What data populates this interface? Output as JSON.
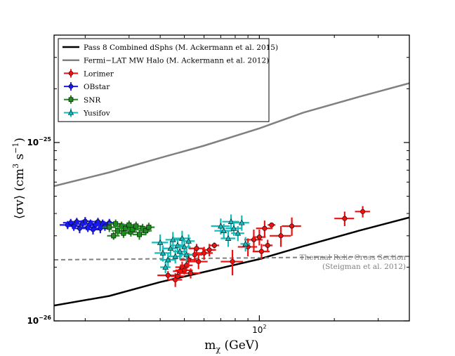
{
  "chart_data": {
    "type": "scatter",
    "title": "",
    "xlabel": "m",
    "xlabel_sub": "χ",
    "xlabel_unit": " (GeV)",
    "ylabel_main": "⟨σv⟩ (cm",
    "ylabel_sup1": "3",
    "ylabel_mid": " s",
    "ylabel_sup2": "−1",
    "ylabel_end": ")",
    "xscale": "log",
    "yscale": "log",
    "xlim": [
      15,
      400
    ],
    "ylim": [
      1e-26,
      4e-25
    ],
    "x_ticks": [
      {
        "value": 100,
        "label": "10",
        "sup": "2"
      }
    ],
    "y_ticks": [
      {
        "value": 1e-26,
        "label": "10",
        "sup": "−26"
      },
      {
        "value": 1e-25,
        "label": "10",
        "sup": "−25"
      }
    ],
    "legend_position": "top-left",
    "lines": [
      {
        "name": "Pass 8 Combined dSphs (M. Ackermann et al. 2015)",
        "color": "#000000",
        "style": "solid",
        "x": [
          15,
          25,
          40,
          60,
          100,
          150,
          250,
          400
        ],
        "y": [
          1.22e-26,
          1.38e-26,
          1.65e-26,
          1.88e-26,
          2.22e-26,
          2.62e-26,
          3.2e-26,
          3.8e-26
        ]
      },
      {
        "name": "Fermi−LAT MW Halo (M. Ackermann et al. 2012)",
        "color": "#808080",
        "style": "solid",
        "x": [
          15,
          25,
          40,
          60,
          100,
          150,
          250,
          400
        ],
        "y": [
          5.7e-26,
          6.8e-26,
          8.2e-26,
          9.6e-26,
          1.2e-25,
          1.47e-25,
          1.8e-25,
          2.15e-25
        ]
      },
      {
        "name": "Thermal Relic Cross Section",
        "color": "#808080",
        "style": "dashed",
        "x": [
          15,
          400
        ],
        "y": [
          2.2e-26,
          2.3e-26
        ]
      }
    ],
    "annotation": {
      "line1": "Thermal Relic Cross Section",
      "line2": "(Steigman et al. 2012)"
    },
    "series": [
      {
        "name": "Lorimer",
        "color": "#ee1111",
        "marker": "circle",
        "points": [
          {
            "x": 43,
            "y": 1.8e-26,
            "dx": 4,
            "dy": 1e-27
          },
          {
            "x": 46,
            "y": 1.7e-26,
            "dx": 3,
            "dy": 1.5e-27
          },
          {
            "x": 47,
            "y": 1.78e-26,
            "dx": 3,
            "dy": 1e-27
          },
          {
            "x": 48,
            "y": 1.9e-26,
            "dx": 3,
            "dy": 1.2e-27
          },
          {
            "x": 49,
            "y": 2e-26,
            "dx": 3,
            "dy": 1.5e-27
          },
          {
            "x": 50,
            "y": 1.92e-26,
            "dx": 4,
            "dy": 1e-27
          },
          {
            "x": 51,
            "y": 2.05e-26,
            "dx": 3,
            "dy": 1.2e-27
          },
          {
            "x": 52,
            "y": 2.2e-26,
            "dx": 4,
            "dy": 2e-27
          },
          {
            "x": 53,
            "y": 1.85e-26,
            "dx": 5,
            "dy": 1.2e-27
          },
          {
            "x": 55,
            "y": 2.35e-26,
            "dx": 4,
            "dy": 2e-27
          },
          {
            "x": 56,
            "y": 2.55e-26,
            "dx": 4,
            "dy": 1.5e-27
          },
          {
            "x": 57,
            "y": 2.15e-26,
            "dx": 5,
            "dy": 2e-27
          },
          {
            "x": 60,
            "y": 2.4e-26,
            "dx": 5,
            "dy": 2e-27
          },
          {
            "x": 63,
            "y": 2.5e-26,
            "dx": 4,
            "dy": 2e-27
          },
          {
            "x": 66,
            "y": 2.65e-26,
            "dx": 3,
            "dy": 1e-27
          },
          {
            "x": 78,
            "y": 2.15e-26,
            "dx": 8,
            "dy": 3.5e-27
          },
          {
            "x": 90,
            "y": 2.6e-26,
            "dx": 8,
            "dy": 3e-27
          },
          {
            "x": 95,
            "y": 2.85e-26,
            "dx": 8,
            "dy": 4e-27
          },
          {
            "x": 100,
            "y": 2.95e-26,
            "dx": 6,
            "dy": 3e-27
          },
          {
            "x": 102,
            "y": 2.45e-26,
            "dx": 8,
            "dy": 2.5e-27
          },
          {
            "x": 105,
            "y": 3.3e-26,
            "dx": 8,
            "dy": 3.5e-27
          },
          {
            "x": 108,
            "y": 2.65e-26,
            "dx": 5,
            "dy": 2e-27
          },
          {
            "x": 112,
            "y": 3.45e-26,
            "dx": 4,
            "dy": 1e-27
          },
          {
            "x": 122,
            "y": 3e-26,
            "dx": 12,
            "dy": 4e-27
          },
          {
            "x": 135,
            "y": 3.4e-26,
            "dx": 12,
            "dy": 4e-27
          },
          {
            "x": 220,
            "y": 3.75e-26,
            "dx": 20,
            "dy": 3.5e-27
          },
          {
            "x": 260,
            "y": 4.1e-26,
            "dx": 18,
            "dy": 3e-27
          }
        ]
      },
      {
        "name": "OBstar",
        "color": "#1a1aee",
        "marker": "circle",
        "points": [
          {
            "x": 17,
            "y": 3.45e-26,
            "dx": 1.2,
            "dy": 1.8e-27
          },
          {
            "x": 17.5,
            "y": 3.55e-26,
            "dx": 1.2,
            "dy": 1.8e-27
          },
          {
            "x": 18,
            "y": 3.4e-26,
            "dx": 1.2,
            "dy": 2e-27
          },
          {
            "x": 18.5,
            "y": 3.6e-26,
            "dx": 1.3,
            "dy": 1.8e-27
          },
          {
            "x": 19,
            "y": 3.3e-26,
            "dx": 1.3,
            "dy": 2e-27
          },
          {
            "x": 19.5,
            "y": 3.5e-26,
            "dx": 1.3,
            "dy": 1.8e-27
          },
          {
            "x": 20,
            "y": 3.62e-26,
            "dx": 1.4,
            "dy": 2e-27
          },
          {
            "x": 20.5,
            "y": 3.35e-26,
            "dx": 1.4,
            "dy": 2e-27
          },
          {
            "x": 21,
            "y": 3.5e-26,
            "dx": 1.4,
            "dy": 2e-27
          },
          {
            "x": 21.5,
            "y": 3.25e-26,
            "dx": 1.4,
            "dy": 2e-27
          },
          {
            "x": 22,
            "y": 3.45e-26,
            "dx": 1.5,
            "dy": 2e-27
          },
          {
            "x": 22.5,
            "y": 3.6e-26,
            "dx": 1.5,
            "dy": 1.8e-27
          },
          {
            "x": 23,
            "y": 3.3e-26,
            "dx": 1.5,
            "dy": 2e-27
          },
          {
            "x": 23.5,
            "y": 3.5e-26,
            "dx": 1.5,
            "dy": 2e-27
          },
          {
            "x": 24,
            "y": 3.4e-26,
            "dx": 1.5,
            "dy": 2e-27
          },
          {
            "x": 25,
            "y": 3.55e-26,
            "dx": 1.6,
            "dy": 1.8e-27
          }
        ]
      },
      {
        "name": "SNR",
        "color": "#1f8a1f",
        "marker": "square",
        "points": [
          {
            "x": 25,
            "y": 3.35e-26,
            "dx": 1.5,
            "dy": 2e-27
          },
          {
            "x": 26,
            "y": 3e-26,
            "dx": 1.5,
            "dy": 1.5e-27
          },
          {
            "x": 26.5,
            "y": 3.5e-26,
            "dx": 1.5,
            "dy": 2e-27
          },
          {
            "x": 27,
            "y": 3.2e-26,
            "dx": 1.5,
            "dy": 1.8e-27
          },
          {
            "x": 28,
            "y": 3.4e-26,
            "dx": 1.8,
            "dy": 2e-27
          },
          {
            "x": 28.5,
            "y": 3.1e-26,
            "dx": 1.8,
            "dy": 1.8e-27
          },
          {
            "x": 29,
            "y": 3.3e-26,
            "dx": 1.8,
            "dy": 2e-27
          },
          {
            "x": 30,
            "y": 3.45e-26,
            "dx": 1.8,
            "dy": 2e-27
          },
          {
            "x": 30.5,
            "y": 3.15e-26,
            "dx": 1.8,
            "dy": 1.8e-27
          },
          {
            "x": 31,
            "y": 3.25e-26,
            "dx": 1.8,
            "dy": 2e-27
          },
          {
            "x": 32,
            "y": 3.4e-26,
            "dx": 2,
            "dy": 2e-27
          },
          {
            "x": 33,
            "y": 3.05e-26,
            "dx": 2,
            "dy": 2e-27
          },
          {
            "x": 34,
            "y": 3.3e-26,
            "dx": 2,
            "dy": 2e-27
          },
          {
            "x": 35,
            "y": 3.2e-26,
            "dx": 2,
            "dy": 1.8e-27
          },
          {
            "x": 36,
            "y": 3.35e-26,
            "dx": 2,
            "dy": 2e-27
          }
        ]
      },
      {
        "name": "Yusifov",
        "color": "#11bbbb",
        "marker": "triangle",
        "points": [
          {
            "x": 40,
            "y": 2.75e-26,
            "dx": 3,
            "dy": 3e-27
          },
          {
            "x": 41,
            "y": 2.4e-26,
            "dx": 3,
            "dy": 2.5e-27
          },
          {
            "x": 42,
            "y": 2e-26,
            "dx": 2,
            "dy": 1.5e-27
          },
          {
            "x": 43,
            "y": 2.2e-26,
            "dx": 3,
            "dy": 2e-27
          },
          {
            "x": 44,
            "y": 2.55e-26,
            "dx": 3,
            "dy": 2.5e-27
          },
          {
            "x": 45,
            "y": 2.85e-26,
            "dx": 3,
            "dy": 3e-27
          },
          {
            "x": 46,
            "y": 2.3e-26,
            "dx": 3,
            "dy": 2e-27
          },
          {
            "x": 47,
            "y": 2.65e-26,
            "dx": 3,
            "dy": 2.5e-27
          },
          {
            "x": 48,
            "y": 2.45e-26,
            "dx": 3,
            "dy": 2.5e-27
          },
          {
            "x": 49,
            "y": 2.9e-26,
            "dx": 4,
            "dy": 3e-27
          },
          {
            "x": 50,
            "y": 2.6e-26,
            "dx": 3,
            "dy": 2.5e-27
          },
          {
            "x": 51,
            "y": 2.35e-26,
            "dx": 3,
            "dy": 2e-27
          },
          {
            "x": 52,
            "y": 2.8e-26,
            "dx": 3,
            "dy": 2.5e-27
          },
          {
            "x": 70,
            "y": 3.4e-26,
            "dx": 6,
            "dy": 3.5e-27
          },
          {
            "x": 72,
            "y": 3.2e-26,
            "dx": 6,
            "dy": 3e-27
          },
          {
            "x": 75,
            "y": 2.9e-26,
            "dx": 5,
            "dy": 3e-27
          },
          {
            "x": 77,
            "y": 3.6e-26,
            "dx": 6,
            "dy": 3.5e-27
          },
          {
            "x": 79,
            "y": 3.3e-26,
            "dx": 6,
            "dy": 3e-27
          },
          {
            "x": 82,
            "y": 3.1e-26,
            "dx": 5,
            "dy": 3e-27
          },
          {
            "x": 85,
            "y": 3.55e-26,
            "dx": 6,
            "dy": 3.5e-27
          },
          {
            "x": 88,
            "y": 2.7e-26,
            "dx": 4,
            "dy": 2.5e-27
          }
        ]
      }
    ]
  }
}
